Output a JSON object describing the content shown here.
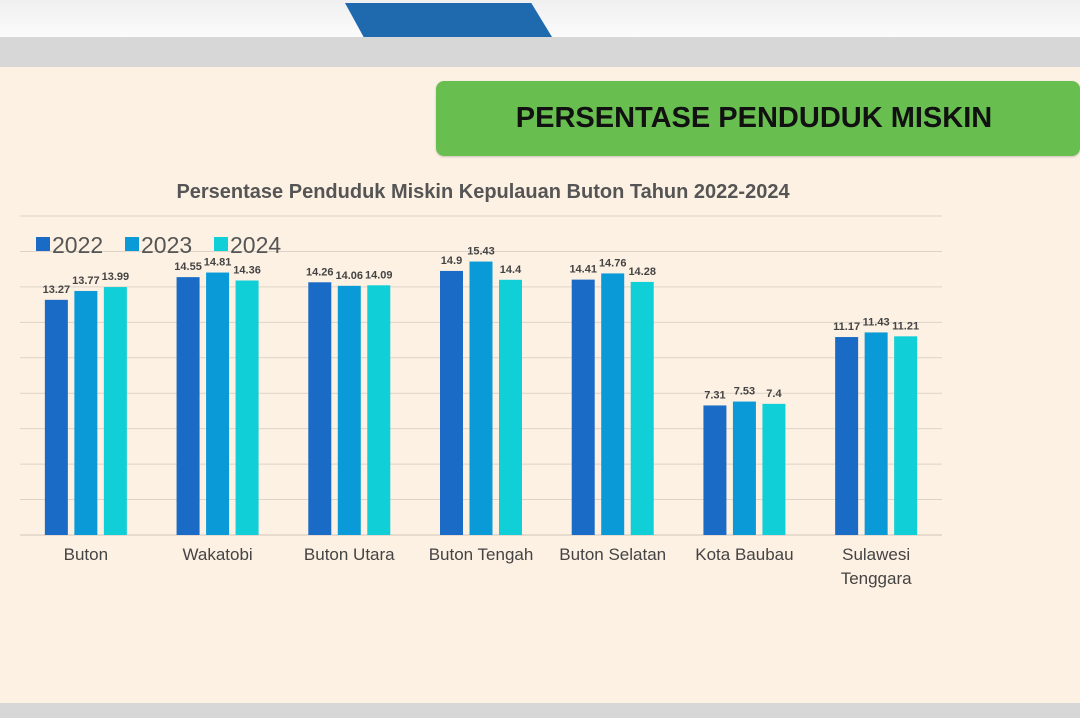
{
  "banner": {
    "title": "PERSENTASE PENDUDUK MISKIN"
  },
  "chart_data": {
    "type": "bar",
    "title": "Persentase Penduduk Miskin Kepulauan Buton Tahun 2022-2024",
    "categories": [
      "Buton",
      "Wakatobi",
      "Buton Utara",
      "Buton Tengah",
      "Buton Selatan",
      "Kota Baubau",
      "Sulawesi Tenggara"
    ],
    "series": [
      {
        "name": "2022",
        "color": "#1a6bc6",
        "values": [
          13.27,
          14.55,
          14.26,
          14.9,
          14.41,
          7.31,
          11.17
        ]
      },
      {
        "name": "2023",
        "color": "#0b9ad8",
        "values": [
          13.77,
          14.81,
          14.06,
          15.43,
          14.76,
          7.53,
          11.43
        ]
      },
      {
        "name": "2024",
        "color": "#10cfd6",
        "values": [
          13.99,
          14.36,
          14.09,
          14.4,
          14.28,
          7.4,
          11.21
        ]
      }
    ],
    "value_labels": [
      [
        "13.27",
        "14.55",
        "14.26",
        "14.9",
        "14.41",
        "7.31",
        "11.17"
      ],
      [
        "13.77",
        "14.81",
        "14.06",
        "15.43",
        "14.76",
        "7.53",
        "11.43"
      ],
      [
        "13.99",
        "14.36",
        "14.09",
        "14.4",
        "14.28",
        "7.4",
        "11.21"
      ]
    ],
    "xlabel": "",
    "ylabel": "",
    "ylim": [
      0,
      18
    ],
    "grid": true,
    "legend": "top-left"
  }
}
